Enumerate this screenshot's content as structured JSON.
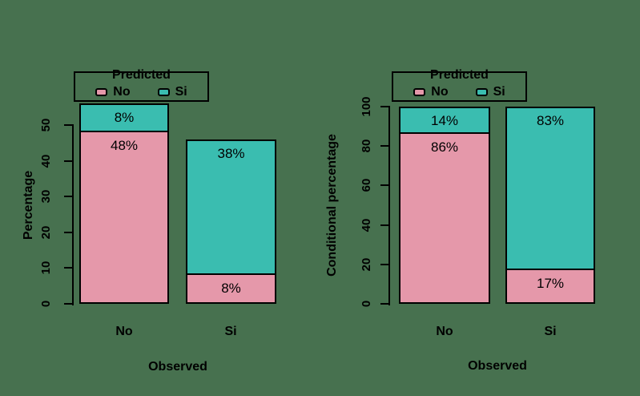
{
  "colors": {
    "background": "#47714F",
    "bar_pink": "#E598AA",
    "bar_teal": "#3ABDB0",
    "line": "#000000",
    "text": "#000000"
  },
  "chart_data": [
    {
      "type": "bar",
      "subtype": "stacked",
      "title": "",
      "xlabel": "Observed",
      "ylabel": "Percentage",
      "categories": [
        "No",
        "Si"
      ],
      "yticks": [
        0,
        10,
        20,
        30,
        40,
        50
      ],
      "ylim": [
        0,
        50
      ],
      "grid": false,
      "legend": {
        "title": "Predicted",
        "position": "top",
        "entries": [
          {
            "label": "No",
            "color": "#E598AA"
          },
          {
            "label": "Si",
            "color": "#3ABDB0"
          }
        ]
      },
      "series": [
        {
          "name": "No",
          "stack_role": "bottom",
          "color": "#E598AA",
          "values": [
            48,
            8
          ],
          "labels": [
            "48%",
            "8%"
          ]
        },
        {
          "name": "Si",
          "stack_role": "top",
          "color": "#3ABDB0",
          "values": [
            8,
            38
          ],
          "labels": [
            "8%",
            "38%"
          ]
        }
      ]
    },
    {
      "type": "bar",
      "subtype": "stacked",
      "title": "",
      "xlabel": "Observed",
      "ylabel": "Conditional percentage",
      "categories": [
        "No",
        "Si"
      ],
      "yticks": [
        0,
        20,
        40,
        60,
        80,
        100
      ],
      "ylim": [
        0,
        100
      ],
      "grid": false,
      "legend": {
        "title": "Predicted",
        "position": "top",
        "entries": [
          {
            "label": "No",
            "color": "#E598AA"
          },
          {
            "label": "Si",
            "color": "#3ABDB0"
          }
        ]
      },
      "series": [
        {
          "name": "No",
          "stack_role": "bottom",
          "color": "#E598AA",
          "values": [
            86,
            17
          ],
          "labels": [
            "86%",
            "17%"
          ]
        },
        {
          "name": "Si",
          "stack_role": "top",
          "color": "#3ABDB0",
          "values": [
            14,
            83
          ],
          "labels": [
            "14%",
            "83%"
          ]
        }
      ]
    }
  ]
}
